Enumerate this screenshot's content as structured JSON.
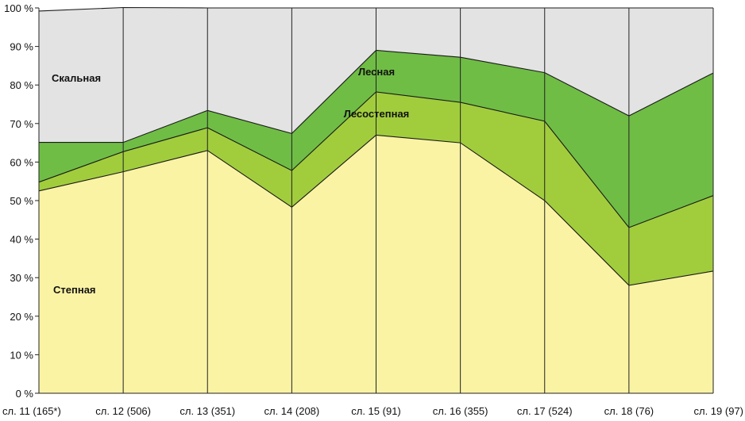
{
  "chart_data": {
    "type": "area",
    "stacked": true,
    "normalized": true,
    "categories": [
      "сл. 11 (165*)",
      "сл. 12 (506)",
      "сл. 13 (351)",
      "сл. 14 (208)",
      "сл. 15 (91)",
      "сл. 16 (355)",
      "сл. 17 (524)",
      "сл. 18 (76)",
      "сл. 19 (97)"
    ],
    "ylim": [
      0,
      100
    ],
    "y_ticks": [
      0,
      10,
      20,
      30,
      40,
      50,
      60,
      70,
      80,
      90,
      100
    ],
    "y_tick_suffix": " %",
    "series": [
      {
        "name": "Степная",
        "values": [
          52.5,
          57.5,
          63,
          48.3,
          67,
          65,
          50,
          28,
          31.7
        ],
        "color": "#faf3a4"
      },
      {
        "name": "Лесостепная",
        "values": [
          2.3,
          5.2,
          5.9,
          9.5,
          11.2,
          10.5,
          20.6,
          15,
          19.6
        ],
        "color": "#a1cd3d"
      },
      {
        "name": "Лесная",
        "values": [
          10.3,
          2.4,
          4.5,
          9.6,
          10.8,
          11.7,
          12.6,
          29,
          31.8
        ],
        "color": "#6fbd45"
      },
      {
        "name": "Скальная",
        "values": [
          34.1,
          35,
          26.6,
          32.6,
          11,
          12.8,
          16.8,
          28,
          16.9
        ],
        "color": "#e3e3e3"
      }
    ],
    "grid": false,
    "vertical_lines_at_categories": true
  }
}
